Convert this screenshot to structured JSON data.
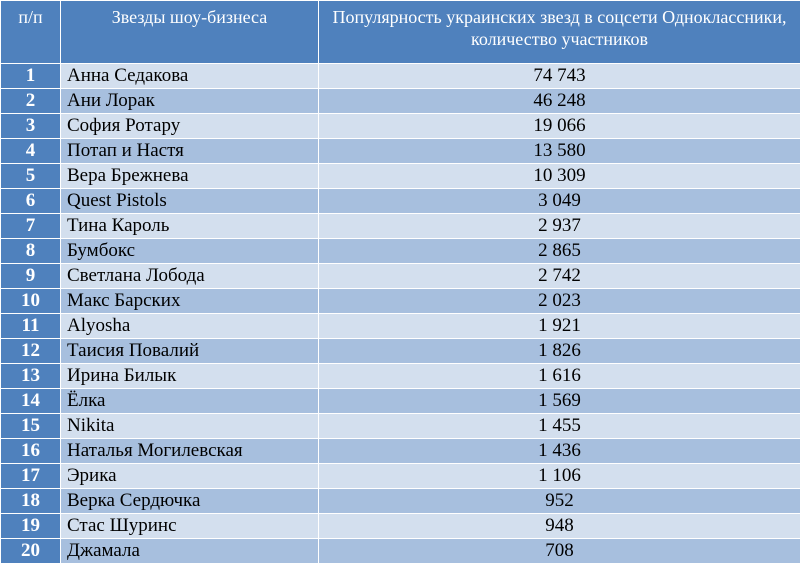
{
  "table": {
    "columns": [
      "п/п",
      "Звезды шоу-бизнеса",
      "Популярность украинских звезд в соцсети Одноклассники, количество участников"
    ],
    "rows": [
      [
        "1",
        "Анна Седакова",
        "74 743"
      ],
      [
        "2",
        "Ани Лорак",
        "46 248"
      ],
      [
        "3",
        "София Ротару",
        "19 066"
      ],
      [
        "4",
        "Потап и Настя",
        "13 580"
      ],
      [
        "5",
        "Вера Брежнева",
        "10 309"
      ],
      [
        "6",
        "Quest Pistols",
        "3 049"
      ],
      [
        "7",
        "Тина Кароль",
        "2 937"
      ],
      [
        "8",
        "Бумбокс",
        "2 865"
      ],
      [
        "9",
        "Светлана Лобода",
        "2 742"
      ],
      [
        "10",
        "Макс Барских",
        "2 023"
      ],
      [
        "11",
        "Alyosha",
        "1 921"
      ],
      [
        "12",
        "Таисия Повалий",
        "1 826"
      ],
      [
        "13",
        "Ирина Билык",
        "1 616"
      ],
      [
        "14",
        "Ёлка",
        "1 569"
      ],
      [
        "15",
        "Nikita",
        "1 455"
      ],
      [
        "16",
        "Наталья Могилевская",
        "1 436"
      ],
      [
        "17",
        "Эрика",
        "1 106"
      ],
      [
        "18",
        "Верка Сердючка",
        "952"
      ],
      [
        "19",
        "Стас Шуринс",
        "948"
      ],
      [
        "20",
        "Джамала",
        "708"
      ]
    ]
  }
}
